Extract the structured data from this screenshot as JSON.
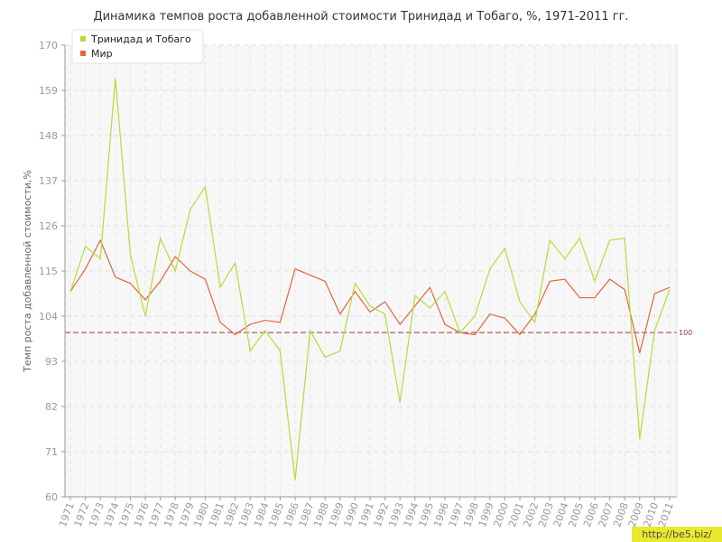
{
  "chart_data": {
    "type": "line",
    "title": "Динамика темпов роста добавленной стоимости Тринидад и Тобаго, %, 1971-2011 гг.",
    "ylabel": "Темп роста добавленной стоимости,%",
    "xlabel": "",
    "ylim": [
      60,
      170
    ],
    "yticks": [
      60,
      71,
      82,
      93,
      104,
      115,
      126,
      137,
      148,
      159,
      170
    ],
    "x": [
      "1971",
      "1972",
      "1973",
      "1974",
      "1975",
      "1976",
      "1977",
      "1978",
      "1979",
      "1980",
      "1981",
      "1982",
      "1983",
      "1984",
      "1985",
      "1986",
      "1987",
      "1988",
      "1989",
      "1990",
      "1991",
      "1992",
      "1993",
      "1994",
      "1995",
      "1996",
      "1997",
      "1998",
      "1999",
      "2000",
      "2001",
      "2002",
      "2003",
      "2004",
      "2005",
      "2006",
      "2007",
      "2008",
      "2009",
      "2010",
      "2011"
    ],
    "series": [
      {
        "name": "Тринидад и Тобаго",
        "color": "#b5dc3a",
        "values": [
          110,
          121,
          118,
          162,
          119,
          104,
          123,
          115,
          130,
          135.5,
          111,
          117,
          95.5,
          100.5,
          95.5,
          64,
          100.5,
          94,
          95.5,
          112,
          106.5,
          104.5,
          83,
          109,
          106,
          110,
          100,
          104,
          115.5,
          120.5,
          107.5,
          102.5,
          122.5,
          118,
          123,
          112.5,
          122.5,
          123,
          74,
          100.5,
          110.5
        ]
      },
      {
        "name": "Мир",
        "color": "#e0663b",
        "values": [
          110,
          115.5,
          122.5,
          113.5,
          112,
          108,
          112.5,
          118.5,
          115,
          113,
          102.5,
          99.5,
          102,
          103,
          102.5,
          115.5,
          114,
          112.5,
          104.5,
          110,
          105,
          107.5,
          102,
          106.5,
          111,
          102,
          100,
          99.5,
          104.5,
          103.5,
          99.5,
          104.5,
          112.5,
          113,
          108.5,
          108.5,
          113,
          110.5,
          95,
          109.5,
          111
        ]
      }
    ],
    "reference_line": {
      "value": 100,
      "label": "100",
      "color": "#9c3a52"
    },
    "legend_position": "top-left",
    "grid": true
  },
  "watermark": "http://be5.biz/"
}
